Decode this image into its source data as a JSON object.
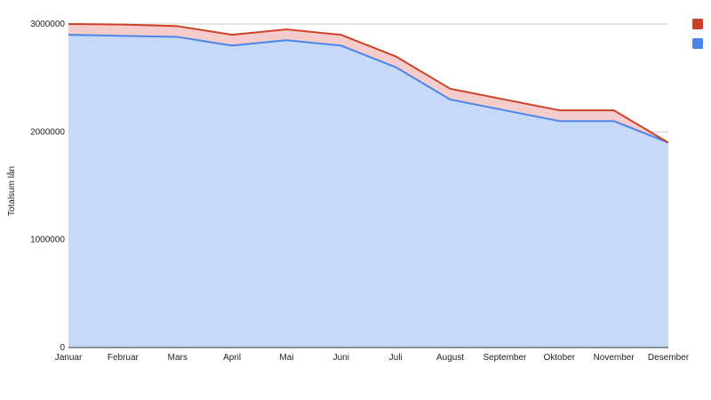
{
  "chart_data": {
    "type": "area",
    "stacked": true,
    "title": "",
    "xlabel": "",
    "ylabel": "Totalsum lån",
    "categories": [
      "Januar",
      "Februar",
      "Mars",
      "April",
      "Mai",
      "Juni",
      "Juli",
      "August",
      "September",
      "Oktober",
      "November",
      "Desember"
    ],
    "ylim": [
      0,
      3000000
    ],
    "yticks": [
      "0",
      "1000000",
      "2000000",
      "3000000"
    ],
    "grid": true,
    "legend_position": "right",
    "series": [
      {
        "color": "#4a86e8",
        "fill": "#c6d9f8",
        "values": [
          2900000,
          2890000,
          2880000,
          2800000,
          2850000,
          2800000,
          2600000,
          2300000,
          2200000,
          2100000,
          2100000,
          1900000
        ]
      },
      {
        "color": "#cc4125",
        "fill": "#f4cccc",
        "values": [
          100000,
          105000,
          100000,
          100000,
          100000,
          100000,
          100000,
          100000,
          100000,
          100000,
          100000,
          0
        ]
      }
    ]
  }
}
